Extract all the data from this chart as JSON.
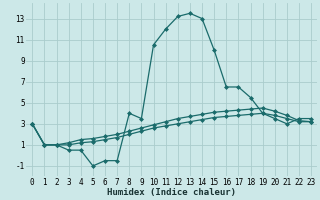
{
  "xlabel": "Humidex (Indice chaleur)",
  "background_color": "#cce8e8",
  "grid_color": "#aacccc",
  "line_color": "#1a6b6b",
  "xlim": [
    -0.5,
    23.5
  ],
  "ylim": [
    -2.0,
    14.5
  ],
  "xticks": [
    0,
    1,
    2,
    3,
    4,
    5,
    6,
    7,
    8,
    9,
    10,
    11,
    12,
    13,
    14,
    15,
    16,
    17,
    18,
    19,
    20,
    21,
    22,
    23
  ],
  "yticks": [
    -1,
    1,
    3,
    5,
    7,
    9,
    11,
    13
  ],
  "series": [
    [
      3.0,
      1.0,
      1.0,
      0.5,
      0.5,
      -1.0,
      -0.5,
      -0.5,
      4.0,
      3.5,
      10.5,
      12.0,
      13.2,
      13.5,
      13.0,
      10.0,
      6.5,
      6.5,
      5.5,
      4.0,
      3.5,
      3.0,
      3.5,
      3.5
    ],
    [
      3.0,
      1.0,
      1.0,
      1.2,
      1.5,
      1.6,
      1.8,
      2.0,
      2.3,
      2.6,
      2.9,
      3.2,
      3.5,
      3.7,
      3.9,
      4.1,
      4.2,
      4.3,
      4.4,
      4.5,
      4.2,
      3.8,
      3.3,
      3.2
    ],
    [
      3.0,
      1.0,
      1.0,
      1.0,
      1.2,
      1.3,
      1.5,
      1.7,
      2.0,
      2.3,
      2.6,
      2.8,
      3.0,
      3.2,
      3.4,
      3.6,
      3.7,
      3.8,
      3.9,
      4.0,
      3.8,
      3.5,
      3.2,
      3.2
    ]
  ],
  "marker": "D",
  "markersize": 2.0,
  "linewidth": 0.9,
  "xlabel_fontsize": 6.5,
  "tick_fontsize": 5.5
}
